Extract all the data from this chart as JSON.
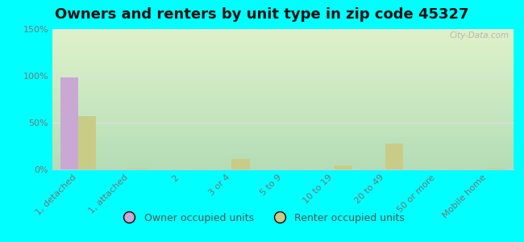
{
  "title": "Owners and renters by unit type in zip code 45327",
  "categories": [
    "1, detached",
    "1, attached",
    "2",
    "3 or 4",
    "5 to 9",
    "10 to 19",
    "20 to 49",
    "50 or more",
    "Mobile home"
  ],
  "owner_values": [
    98,
    0,
    0,
    0,
    0,
    0,
    0,
    0,
    0
  ],
  "renter_values": [
    57,
    1,
    0,
    11,
    0,
    4,
    28,
    0,
    1
  ],
  "owner_color": "#c9a8d4",
  "renter_color": "#c8cc87",
  "background_color": "#00ffff",
  "ylim": [
    0,
    150
  ],
  "yticks": [
    0,
    50,
    100,
    150
  ],
  "ytick_labels": [
    "0%",
    "50%",
    "100%",
    "150%"
  ],
  "bar_width": 0.35,
  "watermark": "City-Data.com",
  "legend_owner": "Owner occupied units",
  "legend_renter": "Renter occupied units",
  "title_fontsize": 13,
  "tick_fontsize": 8,
  "legend_fontsize": 9,
  "grid_color": "#e0e0e0",
  "tick_color": "#777777",
  "title_color": "#111111"
}
